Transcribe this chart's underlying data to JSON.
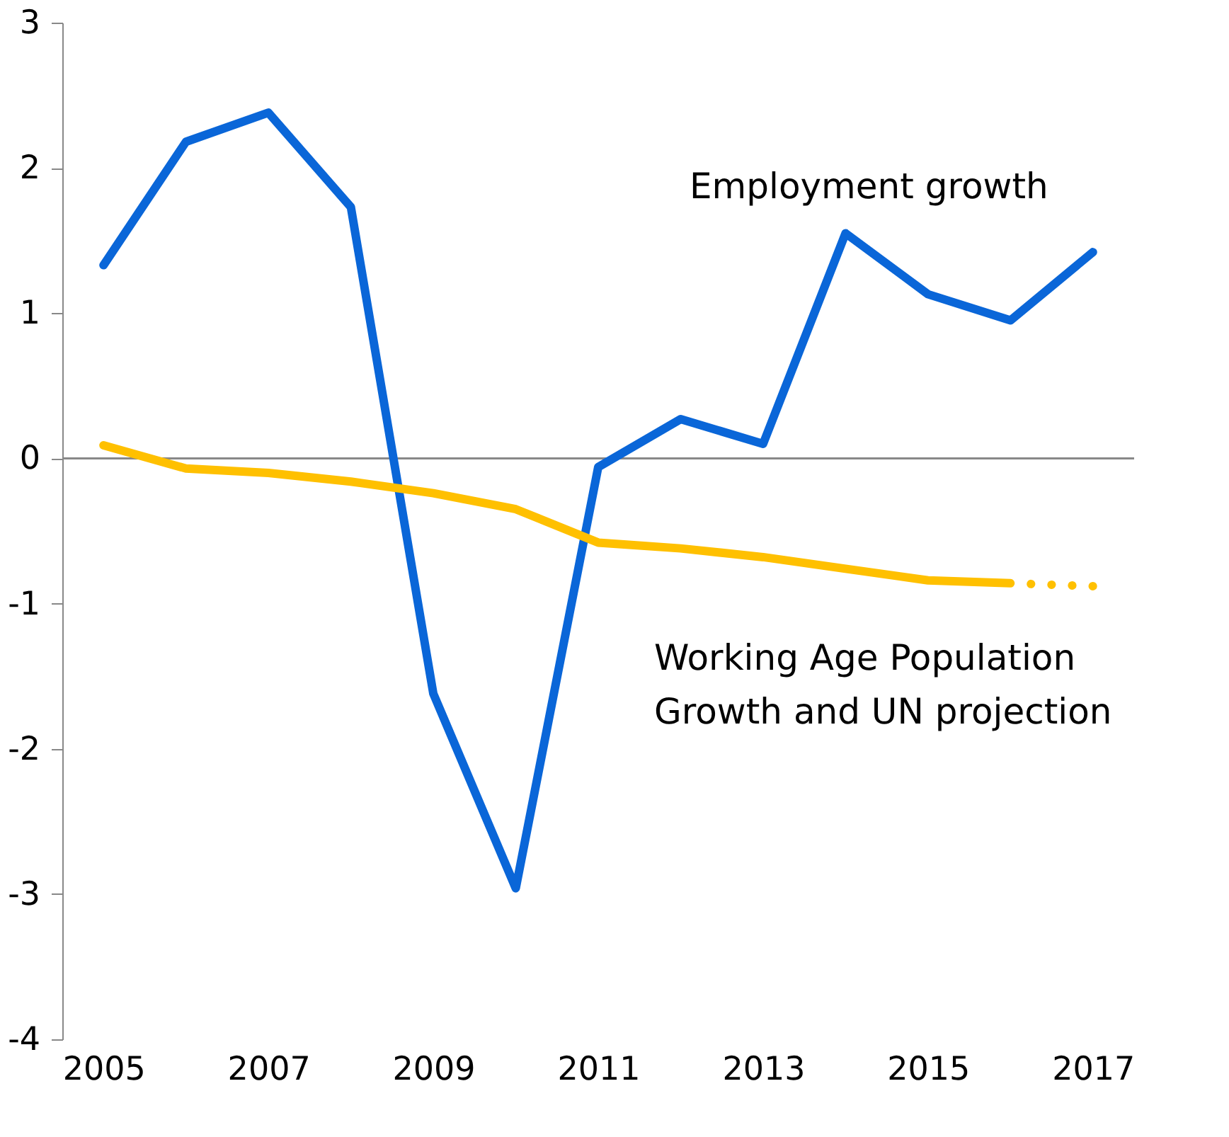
{
  "chart_data": {
    "type": "line",
    "categories": [
      "2005",
      null,
      "2007",
      null,
      "2009",
      null,
      "2011",
      null,
      "2013",
      null,
      "2015",
      null,
      "2017"
    ],
    "series": [
      {
        "name": "Employment growth",
        "color": "#0a66d8",
        "line_style": "solid",
        "values": [
          1.33,
          2.18,
          2.38,
          1.73,
          -1.62,
          -2.96,
          -0.06,
          0.27,
          0.1,
          1.55,
          1.13,
          0.95,
          1.42
        ]
      },
      {
        "name": "Working Age Population\nGrowth and UN projection",
        "color": "#ffc000",
        "line_style": "solid",
        "values": [
          0.09,
          -0.07,
          -0.1,
          -0.16,
          -0.24,
          -0.35,
          -0.58,
          -0.62,
          -0.68,
          -0.76,
          -0.84,
          -0.86,
          null
        ]
      },
      {
        "color": "#ffc000",
        "line_style": "dotted",
        "values": [
          null,
          null,
          null,
          null,
          null,
          null,
          null,
          null,
          null,
          null,
          null,
          -0.86,
          -0.88
        ]
      }
    ],
    "ylim": [
      -4,
      3
    ],
    "yticks": [
      -4,
      -3,
      -2,
      -1,
      0,
      1,
      2,
      3
    ],
    "ref_lines": [
      {
        "axis": "y",
        "value": 0,
        "color": "#888888"
      }
    ],
    "grid": false,
    "marker": "none"
  }
}
